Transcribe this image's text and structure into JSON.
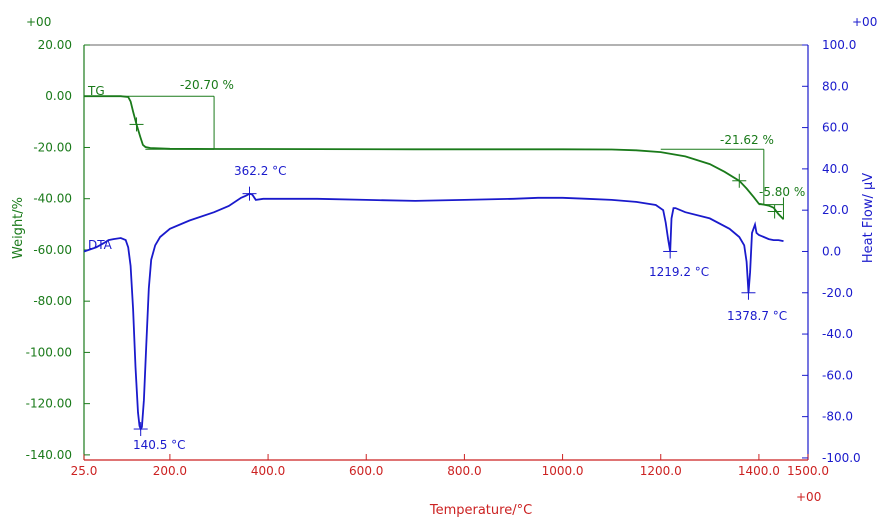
{
  "chart_data": {
    "type": "line",
    "title": "",
    "colors": {
      "tg": "#1a7a1a",
      "dta": "#1a1acc",
      "x_axis": "#cc2222",
      "frame": "#555555"
    },
    "x_axis": {
      "label": "Temperature/°C",
      "range": [
        25,
        1500
      ],
      "ticks": [
        25,
        200,
        400,
        600,
        800,
        1000,
        1200,
        1400,
        1500
      ],
      "tick_labels": [
        "25.0",
        "200.0",
        "400.0",
        "600.0",
        "800.0",
        "1000.0",
        "1200.0",
        "1400.0",
        "1500.0"
      ],
      "offset_label": "+00"
    },
    "y_left": {
      "label": "Weight/%",
      "range": [
        -142,
        20
      ],
      "ticks": [
        20,
        0,
        -20,
        -40,
        -60,
        -80,
        -100,
        -120,
        -140
      ],
      "tick_labels": [
        "20.00",
        "0.00",
        "-20.00",
        "-40.00",
        "-60.00",
        "-80.00",
        "-100.00",
        "-120.00",
        "-140.00"
      ],
      "offset_label": "+00"
    },
    "y_right": {
      "label": "Heat Flow/ μV",
      "range": [
        -101,
        100
      ],
      "ticks": [
        100,
        80,
        60,
        40,
        20,
        0,
        -20,
        -40,
        -60,
        -80,
        -100
      ],
      "tick_labels": [
        "100.0",
        "80.0",
        "60.0",
        "40.0",
        "20.0",
        "0.0",
        "-20.0",
        "-40.0",
        "-60.0",
        "-80.0",
        "-100.0"
      ],
      "offset_label": "+00"
    },
    "series": [
      {
        "name": "TG",
        "axis": "left",
        "x": [
          25,
          80,
          100,
          115,
          120,
          125,
          132,
          140,
          145,
          150,
          160,
          200,
          300,
          500,
          700,
          900,
          1000,
          1100,
          1150,
          1200,
          1250,
          1300,
          1330,
          1360,
          1375,
          1390,
          1400,
          1410,
          1420,
          1430,
          1440,
          1450
        ],
        "values": [
          0,
          0,
          0,
          -0.3,
          -2,
          -6,
          -11,
          -16,
          -19,
          -19.8,
          -20.2,
          -20.5,
          -20.6,
          -20.65,
          -20.7,
          -20.7,
          -20.7,
          -20.8,
          -21.1,
          -21.8,
          -23.5,
          -26.5,
          -29.5,
          -33,
          -36,
          -39.5,
          -42,
          -42.3,
          -42.7,
          -43.5,
          -46,
          -48
        ]
      },
      {
        "name": "DTA",
        "axis": "right",
        "x": [
          25,
          50,
          65,
          75,
          85,
          100,
          110,
          115,
          120,
          125,
          130,
          135,
          138,
          140.5,
          143,
          147,
          152,
          157,
          162,
          170,
          180,
          200,
          240,
          290,
          320,
          345,
          355,
          362.2,
          368,
          375,
          390,
          420,
          500,
          600,
          700,
          800,
          900,
          950,
          1000,
          1050,
          1100,
          1150,
          1190,
          1205,
          1210,
          1215,
          1219.2,
          1222,
          1226,
          1230,
          1250,
          1300,
          1340,
          1360,
          1370,
          1375,
          1378.7,
          1382,
          1386,
          1392,
          1395,
          1400,
          1410,
          1420,
          1430,
          1440,
          1450
        ],
        "values": [
          0,
          2,
          4,
          5.5,
          6,
          6.5,
          5.5,
          2,
          -7,
          -28,
          -56,
          -78,
          -84.5,
          -86,
          -85,
          -72,
          -45,
          -18,
          -4,
          3,
          7,
          11,
          15,
          19,
          22,
          26,
          27,
          28,
          27.5,
          25,
          25.5,
          25.5,
          25.5,
          25,
          24.5,
          25,
          25.5,
          26,
          26,
          25.5,
          25,
          24,
          22.5,
          20,
          14,
          6,
          0,
          16,
          21,
          21,
          19,
          16,
          11,
          7,
          3,
          -5,
          -20,
          -10,
          9,
          13,
          9,
          8,
          7,
          6,
          5.5,
          5.5,
          5
        ]
      }
    ],
    "annotations": [
      {
        "text": "TG",
        "kind": "series-label"
      },
      {
        "text": "DTA",
        "kind": "series-label"
      },
      {
        "text": "-20.70 %",
        "kind": "step"
      },
      {
        "text": "-21.62 %",
        "kind": "step"
      },
      {
        "text": "-5.80 %",
        "kind": "step"
      },
      {
        "text": "140.5 °C",
        "kind": "peak"
      },
      {
        "text": "362.2 °C",
        "kind": "peak"
      },
      {
        "text": "1219.2 °C",
        "kind": "peak"
      },
      {
        "text": "1378.7 °C",
        "kind": "peak"
      }
    ],
    "grid": false,
    "legend": "none"
  }
}
